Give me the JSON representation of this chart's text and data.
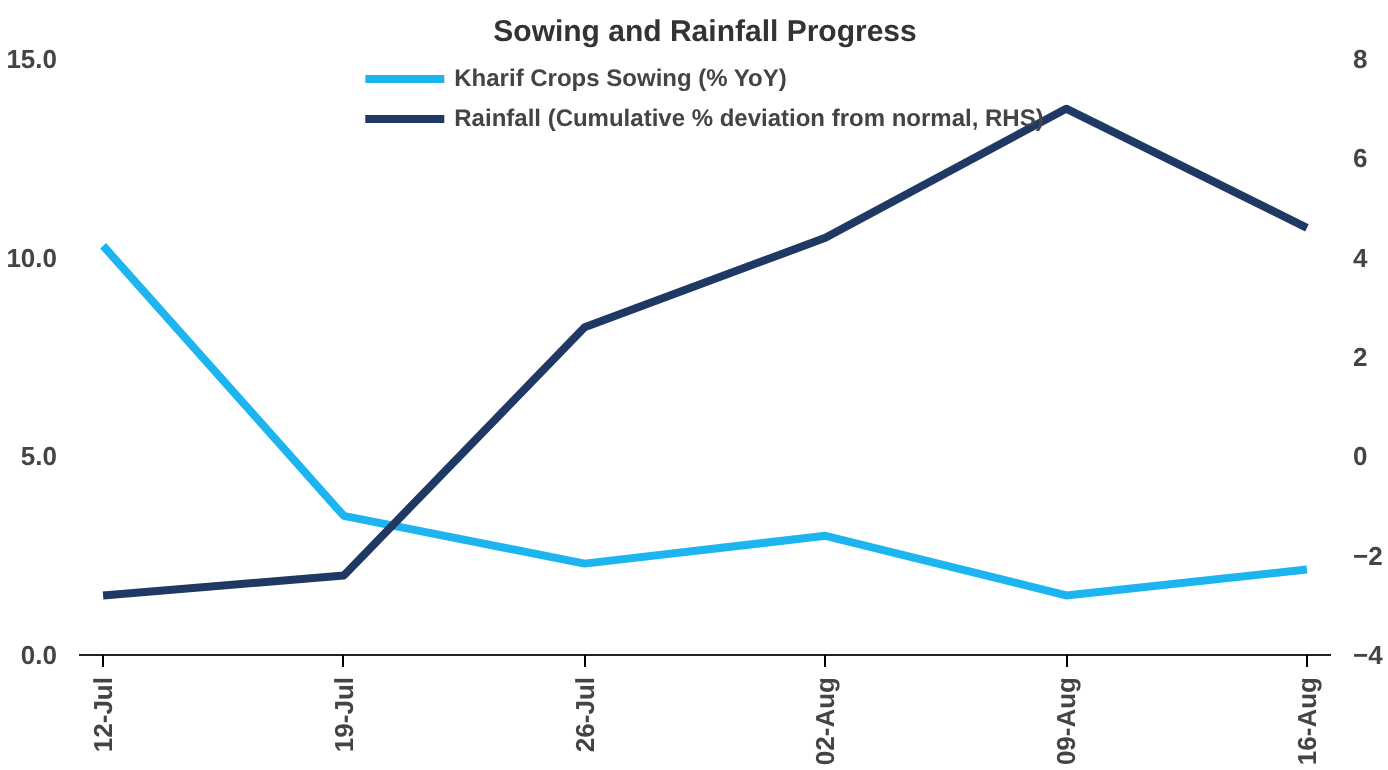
{
  "chart_data": {
    "type": "line",
    "title": "Sowing and Rainfall Progress",
    "categories": [
      "12-Jul",
      "19-Jul",
      "26-Jul",
      "02-Aug",
      "09-Aug",
      "16-Aug"
    ],
    "series": [
      {
        "name": "Kharif Crops Sowing (% YoY)",
        "color": "#1cb5f0",
        "values": [
          10.3,
          3.5,
          2.3,
          3.0,
          1.5,
          2.15
        ]
      },
      {
        "name": "Rainfall (Cumulative % deviation from normal, RHS)",
        "color": "#1f3864",
        "axis": "y2",
        "values": [
          -2.8,
          -2.4,
          2.6,
          4.4,
          7.0,
          4.6
        ]
      }
    ],
    "ylim": [
      0,
      15
    ],
    "yticks": [
      {
        "value": 0,
        "label": "0.0"
      },
      {
        "value": 5,
        "label": "5.0"
      },
      {
        "value": 10,
        "label": "10.0"
      },
      {
        "value": 15,
        "label": "15.0"
      }
    ],
    "y2lim": [
      -4,
      8
    ],
    "y2ticks": [
      -4,
      -2,
      0,
      2,
      4,
      6,
      8
    ],
    "grid": false,
    "legend": "top",
    "marker": "none",
    "line_style": "solid"
  }
}
